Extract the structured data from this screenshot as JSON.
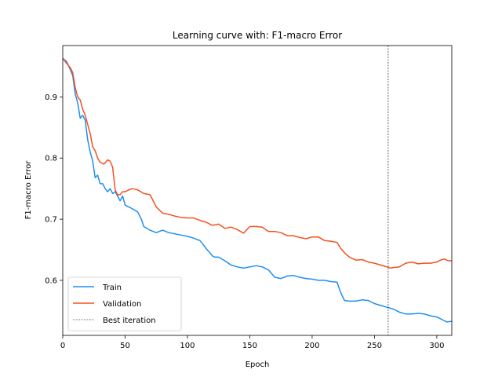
{
  "chart_data": {
    "type": "line",
    "title": "Learning curve with: F1-macro Error",
    "xlabel": "Epoch",
    "ylabel": "F1-macro Error",
    "xlim": [
      0,
      312
    ],
    "ylim": [
      0.51,
      0.984
    ],
    "xticks": [
      0,
      50,
      100,
      150,
      200,
      250,
      300
    ],
    "yticks": [
      0.6,
      0.7,
      0.8,
      0.9
    ],
    "grid": false,
    "legend_position": "lower-left",
    "series": [
      {
        "name": "Train",
        "color": "#1e8ff0",
        "x": [
          0,
          3,
          6,
          8,
          10,
          12,
          14,
          16,
          18,
          20,
          22,
          24,
          26,
          28,
          30,
          32,
          34,
          36,
          38,
          40,
          42,
          44,
          46,
          48,
          50,
          55,
          60,
          63,
          65,
          70,
          75,
          80,
          85,
          90,
          95,
          100,
          105,
          110,
          112,
          115,
          118,
          120,
          122,
          125,
          130,
          135,
          140,
          145,
          150,
          155,
          160,
          165,
          170,
          175,
          180,
          185,
          190,
          195,
          200,
          205,
          210,
          215,
          220,
          222,
          224,
          226,
          230,
          235,
          240,
          245,
          250,
          255,
          260,
          265,
          270,
          275,
          280,
          285,
          290,
          295,
          300,
          305,
          308,
          312
        ],
        "values": [
          0.963,
          0.958,
          0.945,
          0.935,
          0.905,
          0.89,
          0.865,
          0.87,
          0.862,
          0.83,
          0.81,
          0.795,
          0.768,
          0.772,
          0.758,
          0.758,
          0.75,
          0.745,
          0.75,
          0.742,
          0.745,
          0.738,
          0.73,
          0.738,
          0.723,
          0.718,
          0.712,
          0.7,
          0.688,
          0.682,
          0.678,
          0.682,
          0.678,
          0.676,
          0.674,
          0.672,
          0.669,
          0.665,
          0.66,
          0.652,
          0.645,
          0.64,
          0.638,
          0.638,
          0.632,
          0.625,
          0.622,
          0.62,
          0.622,
          0.624,
          0.622,
          0.617,
          0.605,
          0.603,
          0.607,
          0.608,
          0.605,
          0.603,
          0.602,
          0.6,
          0.6,
          0.598,
          0.597,
          0.585,
          0.575,
          0.567,
          0.566,
          0.566,
          0.568,
          0.567,
          0.562,
          0.559,
          0.556,
          0.553,
          0.548,
          0.545,
          0.545,
          0.546,
          0.545,
          0.542,
          0.54,
          0.535,
          0.532,
          0.533
        ]
      },
      {
        "name": "Validation",
        "color": "#f4511e",
        "x": [
          0,
          3,
          6,
          8,
          10,
          12,
          14,
          16,
          18,
          20,
          22,
          24,
          26,
          28,
          30,
          33,
          36,
          38,
          40,
          42,
          44,
          46,
          48,
          50,
          53,
          56,
          60,
          65,
          70,
          75,
          80,
          85,
          90,
          95,
          100,
          105,
          110,
          115,
          120,
          125,
          130,
          135,
          140,
          145,
          150,
          155,
          160,
          165,
          170,
          175,
          180,
          185,
          190,
          195,
          200,
          205,
          210,
          215,
          220,
          223,
          226,
          230,
          235,
          240,
          245,
          250,
          255,
          260,
          263,
          265,
          270,
          275,
          280,
          285,
          290,
          295,
          300,
          303,
          306,
          309,
          312
        ],
        "values": [
          0.963,
          0.955,
          0.948,
          0.94,
          0.915,
          0.9,
          0.895,
          0.88,
          0.87,
          0.855,
          0.84,
          0.818,
          0.812,
          0.8,
          0.793,
          0.79,
          0.797,
          0.795,
          0.785,
          0.748,
          0.74,
          0.74,
          0.745,
          0.745,
          0.748,
          0.75,
          0.748,
          0.742,
          0.74,
          0.72,
          0.71,
          0.708,
          0.705,
          0.703,
          0.702,
          0.702,
          0.698,
          0.695,
          0.69,
          0.692,
          0.685,
          0.687,
          0.683,
          0.677,
          0.688,
          0.688,
          0.687,
          0.68,
          0.68,
          0.678,
          0.673,
          0.673,
          0.67,
          0.668,
          0.671,
          0.671,
          0.665,
          0.664,
          0.662,
          0.652,
          0.645,
          0.638,
          0.633,
          0.634,
          0.63,
          0.628,
          0.625,
          0.622,
          0.62,
          0.621,
          0.622,
          0.628,
          0.63,
          0.627,
          0.628,
          0.628,
          0.63,
          0.633,
          0.635,
          0.632,
          0.632
        ]
      }
    ],
    "vline": {
      "name": "Best iteration",
      "x": 261,
      "color": "#000000",
      "style": "dashed"
    },
    "legend": [
      "Train",
      "Validation",
      "Best iteration"
    ]
  }
}
